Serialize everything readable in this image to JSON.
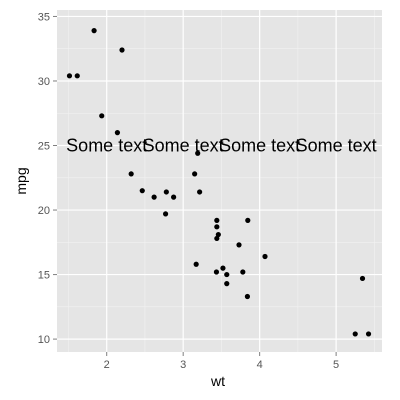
{
  "chart_data": {
    "type": "scatter",
    "title": "",
    "xlabel": "wt",
    "ylabel": "mpg",
    "xlim": [
      1.35,
      5.6
    ],
    "ylim": [
      9.0,
      35.5
    ],
    "x_ticks": [
      2,
      3,
      4,
      5
    ],
    "y_ticks": [
      10,
      15,
      20,
      25,
      30,
      35
    ],
    "grid": true,
    "panel_color": "#e5e5e5",
    "grid_color": "#ffffff",
    "point_color": "#000000",
    "points": [
      {
        "x": 2.62,
        "y": 21.0
      },
      {
        "x": 2.875,
        "y": 21.0
      },
      {
        "x": 2.32,
        "y": 22.8
      },
      {
        "x": 3.215,
        "y": 21.4
      },
      {
        "x": 3.44,
        "y": 18.7
      },
      {
        "x": 3.46,
        "y": 18.1
      },
      {
        "x": 3.57,
        "y": 14.3
      },
      {
        "x": 3.19,
        "y": 24.4
      },
      {
        "x": 3.15,
        "y": 22.8
      },
      {
        "x": 3.44,
        "y": 19.2
      },
      {
        "x": 3.44,
        "y": 17.8
      },
      {
        "x": 4.07,
        "y": 16.4
      },
      {
        "x": 3.73,
        "y": 17.3
      },
      {
        "x": 3.78,
        "y": 15.2
      },
      {
        "x": 5.25,
        "y": 10.4
      },
      {
        "x": 5.424,
        "y": 10.4
      },
      {
        "x": 5.345,
        "y": 14.7
      },
      {
        "x": 2.2,
        "y": 32.4
      },
      {
        "x": 1.615,
        "y": 30.4
      },
      {
        "x": 1.835,
        "y": 33.9
      },
      {
        "x": 2.465,
        "y": 21.5
      },
      {
        "x": 3.52,
        "y": 15.5
      },
      {
        "x": 3.435,
        "y": 15.2
      },
      {
        "x": 3.84,
        "y": 13.3
      },
      {
        "x": 3.845,
        "y": 19.2
      },
      {
        "x": 1.935,
        "y": 27.3
      },
      {
        "x": 2.14,
        "y": 26.0
      },
      {
        "x": 1.513,
        "y": 30.4
      },
      {
        "x": 3.17,
        "y": 15.8
      },
      {
        "x": 2.77,
        "y": 19.7
      },
      {
        "x": 3.57,
        "y": 15.0
      },
      {
        "x": 2.78,
        "y": 21.4
      }
    ],
    "annotations": [
      {
        "text": "Some text",
        "x": 2.0,
        "y": 25
      },
      {
        "text": "Some text",
        "x": 3.0,
        "y": 25
      },
      {
        "text": "Some text",
        "x": 4.0,
        "y": 25
      },
      {
        "text": "Some text",
        "x": 5.0,
        "y": 25
      }
    ]
  }
}
